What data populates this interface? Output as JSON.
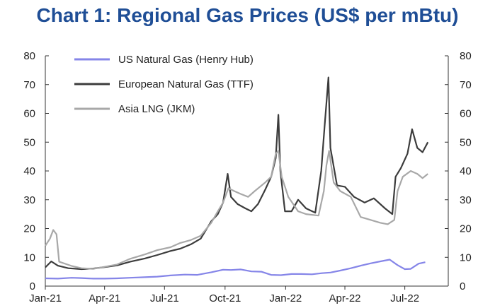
{
  "chart_data": {
    "type": "line",
    "title": "Chart 1: Regional Gas Prices (US$ per mBtu)",
    "xlabel": "",
    "ylabel": "",
    "ylim": [
      0,
      80
    ],
    "yticks": [
      0,
      10,
      20,
      30,
      40,
      50,
      60,
      70,
      80
    ],
    "xlim": [
      "2021-01-01",
      "2022-09-05"
    ],
    "xtick_labels": [
      {
        "date": "2021-01-01",
        "label": "Jan-21"
      },
      {
        "date": "2021-04-01",
        "label": "Apr-21"
      },
      {
        "date": "2021-07-01",
        "label": "Jul-21"
      },
      {
        "date": "2021-10-01",
        "label": "Oct-21"
      },
      {
        "date": "2022-01-01",
        "label": "Jan-22"
      },
      {
        "date": "2022-04-01",
        "label": "Apr-22"
      },
      {
        "date": "2022-07-01",
        "label": "Jul-22"
      }
    ],
    "right_axis_mirror": true,
    "legend_position": "top-left",
    "series": [
      {
        "name": "US Natural Gas (Henry Hub)",
        "color": "#8585e8",
        "points": [
          [
            "2021-01-01",
            2.7
          ],
          [
            "2021-01-20",
            2.6
          ],
          [
            "2021-02-10",
            2.9
          ],
          [
            "2021-02-25",
            2.8
          ],
          [
            "2021-03-15",
            2.6
          ],
          [
            "2021-04-01",
            2.6
          ],
          [
            "2021-04-20",
            2.7
          ],
          [
            "2021-05-10",
            2.9
          ],
          [
            "2021-06-01",
            3.1
          ],
          [
            "2021-06-20",
            3.3
          ],
          [
            "2021-07-10",
            3.7
          ],
          [
            "2021-08-01",
            4.0
          ],
          [
            "2021-08-20",
            3.9
          ],
          [
            "2021-09-10",
            4.8
          ],
          [
            "2021-09-28",
            5.7
          ],
          [
            "2021-10-10",
            5.6
          ],
          [
            "2021-10-25",
            5.8
          ],
          [
            "2021-11-10",
            5.1
          ],
          [
            "2021-11-25",
            5.0
          ],
          [
            "2021-12-10",
            3.9
          ],
          [
            "2021-12-25",
            3.8
          ],
          [
            "2022-01-10",
            4.2
          ],
          [
            "2022-01-25",
            4.2
          ],
          [
            "2022-02-10",
            4.1
          ],
          [
            "2022-02-25",
            4.5
          ],
          [
            "2022-03-10",
            4.7
          ],
          [
            "2022-03-25",
            5.4
          ],
          [
            "2022-04-10",
            6.2
          ],
          [
            "2022-04-25",
            7.1
          ],
          [
            "2022-05-10",
            7.9
          ],
          [
            "2022-05-25",
            8.6
          ],
          [
            "2022-06-08",
            9.2
          ],
          [
            "2022-06-20",
            7.3
          ],
          [
            "2022-07-01",
            5.9
          ],
          [
            "2022-07-10",
            6.0
          ],
          [
            "2022-07-22",
            7.8
          ],
          [
            "2022-08-01",
            8.3
          ]
        ]
      },
      {
        "name": "European Natural Gas (TTF)",
        "color": "#3c3c3c",
        "points": [
          [
            "2021-01-01",
            6.5
          ],
          [
            "2021-01-10",
            8.6
          ],
          [
            "2021-01-20",
            7.1
          ],
          [
            "2021-02-05",
            6.2
          ],
          [
            "2021-02-25",
            5.9
          ],
          [
            "2021-03-15",
            6.1
          ],
          [
            "2021-04-01",
            6.6
          ],
          [
            "2021-04-20",
            7.2
          ],
          [
            "2021-05-10",
            8.5
          ],
          [
            "2021-06-01",
            9.6
          ],
          [
            "2021-06-20",
            10.8
          ],
          [
            "2021-07-10",
            12.2
          ],
          [
            "2021-07-25",
            13.0
          ],
          [
            "2021-08-10",
            14.5
          ],
          [
            "2021-08-25",
            16.5
          ],
          [
            "2021-09-10",
            22.5
          ],
          [
            "2021-09-20",
            25.0
          ],
          [
            "2021-09-28",
            29.0
          ],
          [
            "2021-10-05",
            39.0
          ],
          [
            "2021-10-10",
            31.0
          ],
          [
            "2021-10-20",
            28.5
          ],
          [
            "2021-11-01",
            27.0
          ],
          [
            "2021-11-10",
            26.0
          ],
          [
            "2021-11-20",
            28.5
          ],
          [
            "2021-12-01",
            33.5
          ],
          [
            "2021-12-10",
            38.0
          ],
          [
            "2021-12-17",
            44.5
          ],
          [
            "2021-12-21",
            59.5
          ],
          [
            "2021-12-24",
            40.0
          ],
          [
            "2021-12-31",
            26.0
          ],
          [
            "2022-01-10",
            26.0
          ],
          [
            "2022-01-20",
            30.0
          ],
          [
            "2022-02-01",
            27.0
          ],
          [
            "2022-02-15",
            25.5
          ],
          [
            "2022-02-24",
            40.0
          ],
          [
            "2022-03-01",
            55.0
          ],
          [
            "2022-03-07",
            72.5
          ],
          [
            "2022-03-10",
            48.0
          ],
          [
            "2022-03-20",
            35.0
          ],
          [
            "2022-04-01",
            34.5
          ],
          [
            "2022-04-15",
            31.0
          ],
          [
            "2022-05-01",
            29.0
          ],
          [
            "2022-05-15",
            30.5
          ],
          [
            "2022-06-01",
            27.0
          ],
          [
            "2022-06-12",
            25.0
          ],
          [
            "2022-06-17",
            38.0
          ],
          [
            "2022-06-25",
            41.0
          ],
          [
            "2022-07-05",
            46.0
          ],
          [
            "2022-07-12",
            54.5
          ],
          [
            "2022-07-20",
            48.0
          ],
          [
            "2022-07-28",
            46.5
          ],
          [
            "2022-08-05",
            50.0
          ]
        ]
      },
      {
        "name": "Asia LNG (JKM)",
        "color": "#a8a8a8",
        "points": [
          [
            "2021-01-01",
            14.0
          ],
          [
            "2021-01-08",
            16.5
          ],
          [
            "2021-01-13",
            19.5
          ],
          [
            "2021-01-18",
            18.0
          ],
          [
            "2021-01-22",
            8.5
          ],
          [
            "2021-02-10",
            7.0
          ],
          [
            "2021-02-25",
            6.2
          ],
          [
            "2021-03-15",
            6.0
          ],
          [
            "2021-04-01",
            6.7
          ],
          [
            "2021-04-20",
            7.5
          ],
          [
            "2021-05-10",
            9.5
          ],
          [
            "2021-06-01",
            11.0
          ],
          [
            "2021-06-20",
            12.5
          ],
          [
            "2021-07-10",
            13.5
          ],
          [
            "2021-07-25",
            15.0
          ],
          [
            "2021-08-10",
            16.0
          ],
          [
            "2021-08-25",
            17.5
          ],
          [
            "2021-09-10",
            22.0
          ],
          [
            "2021-09-20",
            26.0
          ],
          [
            "2021-09-28",
            29.0
          ],
          [
            "2021-10-06",
            34.0
          ],
          [
            "2021-10-15",
            33.0
          ],
          [
            "2021-10-25",
            32.0
          ],
          [
            "2021-11-05",
            31.0
          ],
          [
            "2021-11-15",
            33.0
          ],
          [
            "2021-12-01",
            36.0
          ],
          [
            "2021-12-10",
            38.0
          ],
          [
            "2021-12-17",
            46.0
          ],
          [
            "2021-12-21",
            47.0
          ],
          [
            "2021-12-26",
            38.0
          ],
          [
            "2022-01-05",
            31.0
          ],
          [
            "2022-01-20",
            26.0
          ],
          [
            "2022-02-01",
            25.0
          ],
          [
            "2022-02-20",
            24.5
          ],
          [
            "2022-02-28",
            33.0
          ],
          [
            "2022-03-04",
            42.0
          ],
          [
            "2022-03-08",
            47.0
          ],
          [
            "2022-03-15",
            36.0
          ],
          [
            "2022-03-25",
            33.0
          ],
          [
            "2022-04-10",
            31.0
          ],
          [
            "2022-04-25",
            24.0
          ],
          [
            "2022-05-10",
            23.0
          ],
          [
            "2022-05-25",
            22.0
          ],
          [
            "2022-06-05",
            21.5
          ],
          [
            "2022-06-15",
            23.0
          ],
          [
            "2022-06-20",
            33.0
          ],
          [
            "2022-06-28",
            38.0
          ],
          [
            "2022-07-10",
            40.0
          ],
          [
            "2022-07-20",
            39.0
          ],
          [
            "2022-07-28",
            37.5
          ],
          [
            "2022-08-05",
            39.0
          ]
        ]
      }
    ]
  }
}
